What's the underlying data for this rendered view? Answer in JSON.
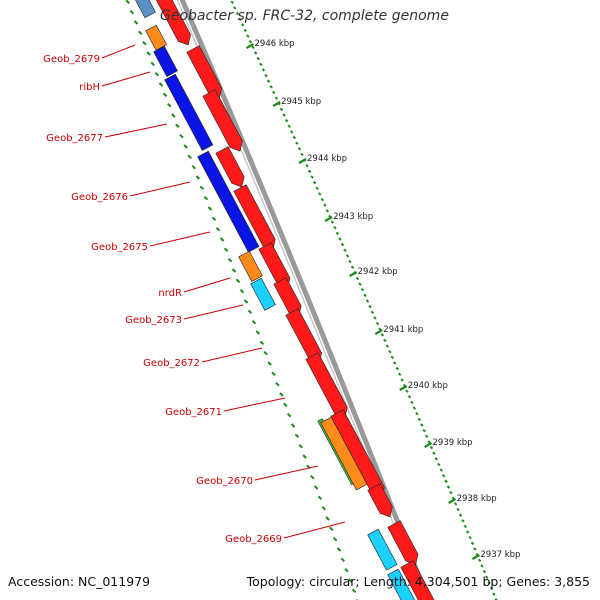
{
  "title": "Geobacter sp. FRC-32, complete genome",
  "footer": {
    "accession": "Accession: NC_011979",
    "topology": "Topology: circular; Length: 4,304,501 bp; Genes: 3,855"
  },
  "colors": {
    "cds_red": "#ff1a1a",
    "blue": "#0a14e6",
    "orange": "#ff8c1a",
    "cyan": "#1ad1ff",
    "green": "#3cc83c",
    "steel": "#5a8fc8",
    "label_red": "#cc0000",
    "tick_green": "#1a8a1a",
    "backbone": "#888888"
  },
  "scale_ticks": [
    "2946 kbp",
    "2945 kbp",
    "2944 kbp",
    "2943 kbp",
    "2942 kbp",
    "2941 kbp",
    "2940 kbp",
    "2939 kbp",
    "2938 kbp",
    "2937 kbp"
  ],
  "gene_labels": [
    "Geob_2679",
    "ribH",
    "Geob_2677",
    "Geob_2676",
    "Geob_2675",
    "nrdR",
    "Geob_2673",
    "Geob_2672",
    "Geob_2671",
    "Geob_2670",
    "Geob_2669"
  ]
}
